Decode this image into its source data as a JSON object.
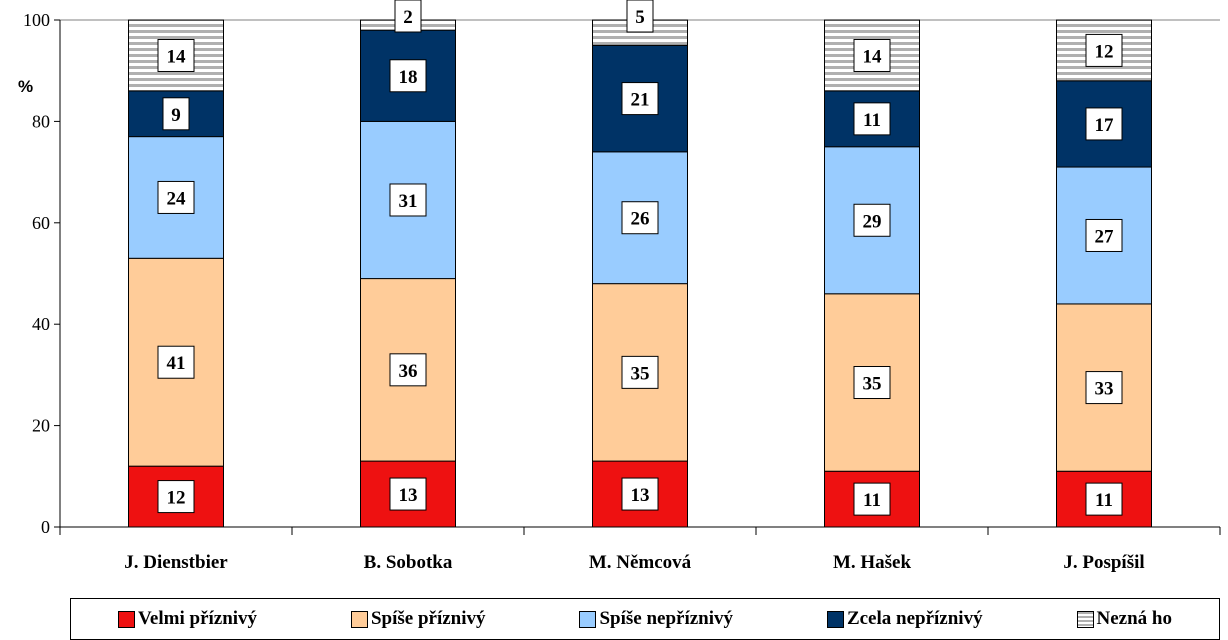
{
  "chart_data": {
    "type": "bar",
    "stacked": true,
    "ylabel": "%",
    "ylim": [
      0,
      100
    ],
    "yticks": [
      0,
      20,
      40,
      60,
      80,
      100
    ],
    "categories": [
      "J. Dienstbier",
      "B. Sobotka",
      "M. Němcová",
      "M. Hašek",
      "J. Pospíšil"
    ],
    "series": [
      {
        "name": "Velmi příznivý",
        "color": "#ee1111",
        "values": [
          12,
          13,
          13,
          11,
          11
        ]
      },
      {
        "name": "Spíše příznivý",
        "color": "#ffcc99",
        "values": [
          41,
          36,
          35,
          35,
          33
        ]
      },
      {
        "name": "Spíše nepříznivý",
        "color": "#99ccff",
        "values": [
          24,
          31,
          26,
          29,
          27
        ]
      },
      {
        "name": "Zcela nepříznivý",
        "color": "#003366",
        "values": [
          9,
          18,
          21,
          11,
          17
        ]
      },
      {
        "name": "Nezná ho",
        "color": "#cccccc",
        "pattern": "horizontal-stripes",
        "values": [
          14,
          2,
          5,
          14,
          12
        ]
      }
    ],
    "legend_position": "bottom"
  }
}
